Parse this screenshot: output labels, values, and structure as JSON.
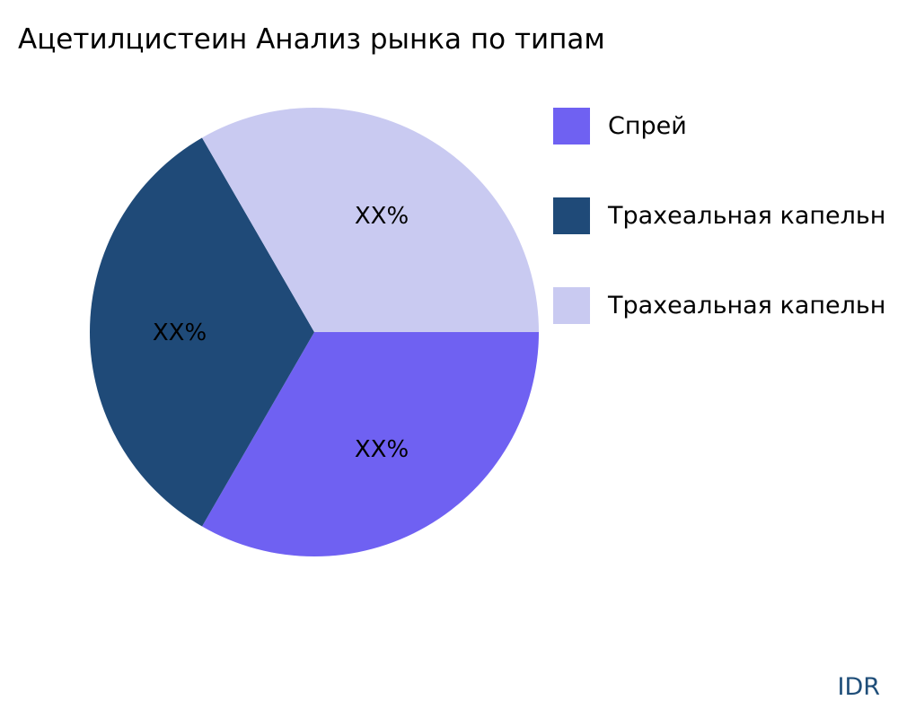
{
  "chart_data": {
    "type": "pie",
    "title": "Ацетилцистеин Анализ рынка по типам",
    "slices": [
      {
        "label": "Спрей",
        "value": 1,
        "display": "XX%",
        "color": "#6f61f2"
      },
      {
        "label": "Трахеальная капельн",
        "value": 1,
        "display": "XX%",
        "color": "#1f4a78"
      },
      {
        "label": "Трахеальная капельн",
        "value": 1,
        "display": "XX%",
        "color": "#c9caf1"
      }
    ],
    "legend_position": "right",
    "start_angle": "3 o'clock",
    "direction": "clockwise"
  },
  "brand": "IDR"
}
